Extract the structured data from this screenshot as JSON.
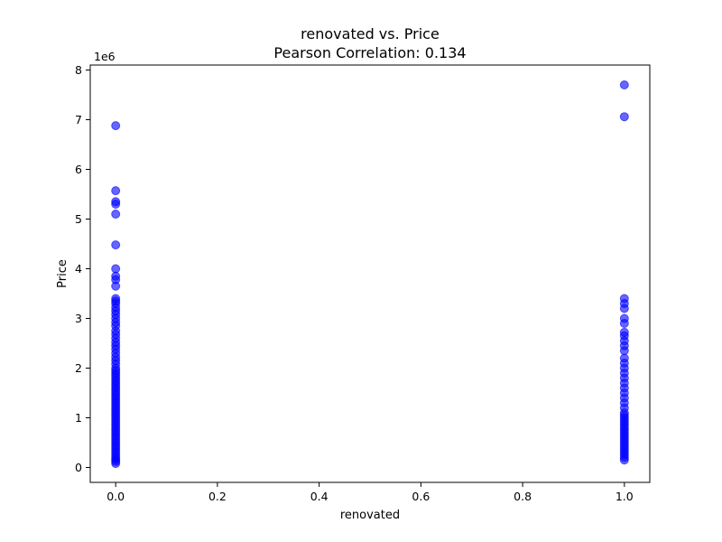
{
  "chart_data": {
    "type": "scatter",
    "title": "renovated vs. Price",
    "subtitle": "Pearson Correlation: 0.134",
    "xlabel": "renovated",
    "ylabel": "Price",
    "y_offset_label": "1e6",
    "xlim": [
      -0.05,
      1.05
    ],
    "ylim": [
      -0.3,
      8.1
    ],
    "xticks": [
      0.0,
      0.2,
      0.4,
      0.6,
      0.8,
      1.0
    ],
    "xtick_labels": [
      "0.0",
      "0.2",
      "0.4",
      "0.6",
      "0.8",
      "1.0"
    ],
    "yticks": [
      0,
      1,
      2,
      3,
      4,
      5,
      6,
      7,
      8
    ],
    "ytick_labels": [
      "0",
      "1",
      "2",
      "3",
      "4",
      "5",
      "6",
      "7",
      "8"
    ],
    "grid": false,
    "series": [
      {
        "color": "#0000ff",
        "points": [
          {
            "x": 0,
            "y": 0.08
          },
          {
            "x": 0,
            "y": 0.12
          },
          {
            "x": 0,
            "y": 0.16
          },
          {
            "x": 0,
            "y": 0.2
          },
          {
            "x": 0,
            "y": 0.25
          },
          {
            "x": 0,
            "y": 0.3
          },
          {
            "x": 0,
            "y": 0.35
          },
          {
            "x": 0,
            "y": 0.4
          },
          {
            "x": 0,
            "y": 0.45
          },
          {
            "x": 0,
            "y": 0.5
          },
          {
            "x": 0,
            "y": 0.55
          },
          {
            "x": 0,
            "y": 0.6
          },
          {
            "x": 0,
            "y": 0.65
          },
          {
            "x": 0,
            "y": 0.7
          },
          {
            "x": 0,
            "y": 0.75
          },
          {
            "x": 0,
            "y": 0.8
          },
          {
            "x": 0,
            "y": 0.85
          },
          {
            "x": 0,
            "y": 0.9
          },
          {
            "x": 0,
            "y": 0.95
          },
          {
            "x": 0,
            "y": 1.0
          },
          {
            "x": 0,
            "y": 1.05
          },
          {
            "x": 0,
            "y": 1.1
          },
          {
            "x": 0,
            "y": 1.15
          },
          {
            "x": 0,
            "y": 1.2
          },
          {
            "x": 0,
            "y": 1.25
          },
          {
            "x": 0,
            "y": 1.3
          },
          {
            "x": 0,
            "y": 1.35
          },
          {
            "x": 0,
            "y": 1.4
          },
          {
            "x": 0,
            "y": 1.45
          },
          {
            "x": 0,
            "y": 1.5
          },
          {
            "x": 0,
            "y": 1.55
          },
          {
            "x": 0,
            "y": 1.6
          },
          {
            "x": 0,
            "y": 1.65
          },
          {
            "x": 0,
            "y": 1.7
          },
          {
            "x": 0,
            "y": 1.75
          },
          {
            "x": 0,
            "y": 1.8
          },
          {
            "x": 0,
            "y": 1.85
          },
          {
            "x": 0,
            "y": 1.9
          },
          {
            "x": 0,
            "y": 1.95
          },
          {
            "x": 0,
            "y": 2.0
          },
          {
            "x": 0,
            "y": 2.08
          },
          {
            "x": 0,
            "y": 2.15
          },
          {
            "x": 0,
            "y": 2.22
          },
          {
            "x": 0,
            "y": 2.3
          },
          {
            "x": 0,
            "y": 2.38
          },
          {
            "x": 0,
            "y": 2.45
          },
          {
            "x": 0,
            "y": 2.52
          },
          {
            "x": 0,
            "y": 2.6
          },
          {
            "x": 0,
            "y": 2.68
          },
          {
            "x": 0,
            "y": 2.75
          },
          {
            "x": 0,
            "y": 2.85
          },
          {
            "x": 0,
            "y": 2.92
          },
          {
            "x": 0,
            "y": 3.0
          },
          {
            "x": 0,
            "y": 3.08
          },
          {
            "x": 0,
            "y": 3.15
          },
          {
            "x": 0,
            "y": 3.22
          },
          {
            "x": 0,
            "y": 3.3
          },
          {
            "x": 0,
            "y": 3.35
          },
          {
            "x": 0,
            "y": 3.4
          },
          {
            "x": 0,
            "y": 3.65
          },
          {
            "x": 0,
            "y": 3.78
          },
          {
            "x": 0,
            "y": 3.85
          },
          {
            "x": 0,
            "y": 4.0
          },
          {
            "x": 0,
            "y": 4.48
          },
          {
            "x": 0,
            "y": 5.1
          },
          {
            "x": 0,
            "y": 5.3
          },
          {
            "x": 0,
            "y": 5.35
          },
          {
            "x": 0,
            "y": 5.57
          },
          {
            "x": 0,
            "y": 6.88
          },
          {
            "x": 1,
            "y": 0.15
          },
          {
            "x": 1,
            "y": 0.2
          },
          {
            "x": 1,
            "y": 0.25
          },
          {
            "x": 1,
            "y": 0.3
          },
          {
            "x": 1,
            "y": 0.35
          },
          {
            "x": 1,
            "y": 0.4
          },
          {
            "x": 1,
            "y": 0.45
          },
          {
            "x": 1,
            "y": 0.5
          },
          {
            "x": 1,
            "y": 0.55
          },
          {
            "x": 1,
            "y": 0.6
          },
          {
            "x": 1,
            "y": 0.65
          },
          {
            "x": 1,
            "y": 0.7
          },
          {
            "x": 1,
            "y": 0.75
          },
          {
            "x": 1,
            "y": 0.8
          },
          {
            "x": 1,
            "y": 0.85
          },
          {
            "x": 1,
            "y": 0.9
          },
          {
            "x": 1,
            "y": 0.95
          },
          {
            "x": 1,
            "y": 1.0
          },
          {
            "x": 1,
            "y": 1.05
          },
          {
            "x": 1,
            "y": 1.1
          },
          {
            "x": 1,
            "y": 1.2
          },
          {
            "x": 1,
            "y": 1.3
          },
          {
            "x": 1,
            "y": 1.4
          },
          {
            "x": 1,
            "y": 1.5
          },
          {
            "x": 1,
            "y": 1.6
          },
          {
            "x": 1,
            "y": 1.7
          },
          {
            "x": 1,
            "y": 1.8
          },
          {
            "x": 1,
            "y": 1.9
          },
          {
            "x": 1,
            "y": 2.0
          },
          {
            "x": 1,
            "y": 2.1
          },
          {
            "x": 1,
            "y": 2.2
          },
          {
            "x": 1,
            "y": 2.35
          },
          {
            "x": 1,
            "y": 2.45
          },
          {
            "x": 1,
            "y": 2.55
          },
          {
            "x": 1,
            "y": 2.65
          },
          {
            "x": 1,
            "y": 2.72
          },
          {
            "x": 1,
            "y": 2.9
          },
          {
            "x": 1,
            "y": 3.0
          },
          {
            "x": 1,
            "y": 3.2
          },
          {
            "x": 1,
            "y": 3.3
          },
          {
            "x": 1,
            "y": 3.4
          },
          {
            "x": 1,
            "y": 7.06
          },
          {
            "x": 1,
            "y": 7.7
          }
        ]
      }
    ]
  }
}
